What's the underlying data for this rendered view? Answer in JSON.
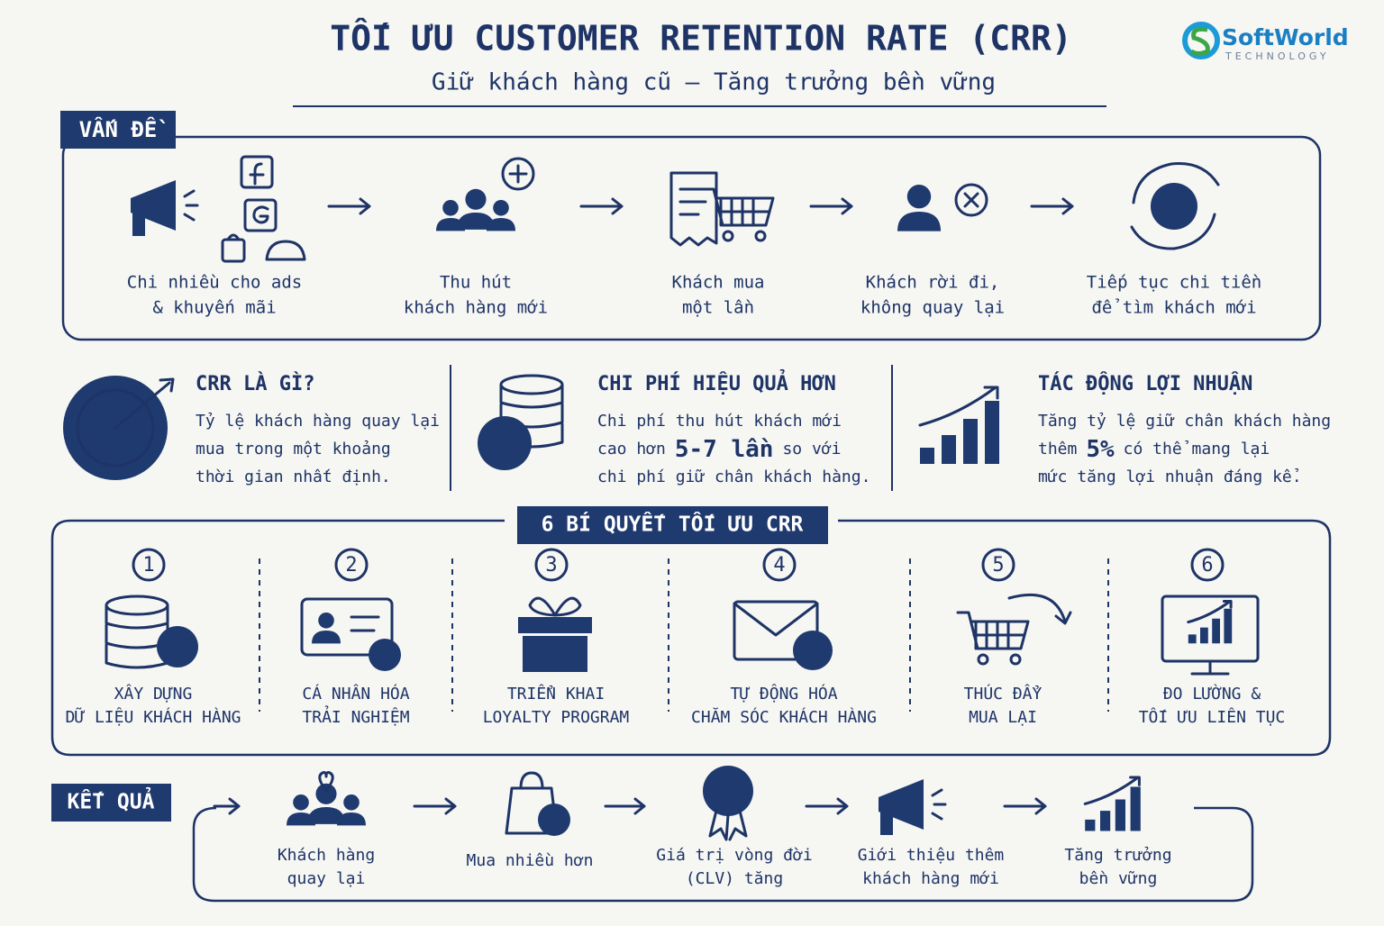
{
  "header": {
    "title": "TỐI ƯU CUSTOMER RETENTION RATE (CRR)",
    "subtitle": "Giữ khách hàng cũ – Tăng trưởng bền vững"
  },
  "logo": {
    "name": "SoftWorld",
    "tagline": "TECHNOLOGY"
  },
  "problem": {
    "label": "VẤN ĐỀ",
    "steps": [
      [
        "Chi nhiều cho ads",
        "& khuyến mãi"
      ],
      [
        "Thu hút",
        "khách hàng mới"
      ],
      [
        "Khách mua",
        "một lần"
      ],
      [
        "Khách rời đi,",
        "không quay lại"
      ],
      [
        "Tiếp tục chi tiền",
        "để tìm khách mới"
      ]
    ]
  },
  "info": [
    {
      "title": "CRR LÀ GÌ?",
      "lines": [
        [
          "Tỷ lệ khách hàng quay lại"
        ],
        [
          "mua trong một khoảng"
        ],
        [
          "thời gian nhất định."
        ]
      ]
    },
    {
      "title": "CHI PHÍ HIỆU QUẢ HƠN",
      "lines": [
        [
          "Chi phí thu hút khách mới"
        ],
        [
          "cao hơn",
          "5-7 lần",
          "so với"
        ],
        [
          "chi phí giữ chân khách hàng."
        ]
      ]
    },
    {
      "title": "TÁC ĐỘNG LỢI NHUẬN",
      "lines": [
        [
          "Tăng tỷ lệ giữ chân khách hàng"
        ],
        [
          "thêm",
          "5%",
          "có thể mang lại"
        ],
        [
          "mức tăng lợi nhuận đáng kể."
        ]
      ]
    }
  ],
  "tips": {
    "title": "6 BÍ QUYẾT TỐI ƯU CRR",
    "items": [
      {
        "number": 1,
        "lines": [
          "XÂY DỰNG",
          "DỮ LIỆU KHÁCH HÀNG"
        ]
      },
      {
        "number": 2,
        "lines": [
          "CÁ NHÂN HÓA",
          "TRẢI NGHIỆM"
        ]
      },
      {
        "number": 3,
        "lines": [
          "TRIỂN KHAI",
          "LOYALTY PROGRAM"
        ]
      },
      {
        "number": 4,
        "lines": [
          "TỰ ĐỘNG HÓA",
          "CHĂM SÓC KHÁCH HÀNG"
        ]
      },
      {
        "number": 5,
        "lines": [
          "THÚC ĐẨY",
          "MUA LẠI"
        ]
      },
      {
        "number": 6,
        "lines": [
          "ĐO LƯỜNG &",
          "TỐI ƯU LIÊN TỤC"
        ]
      }
    ]
  },
  "result": {
    "label": "KẾT QUẢ",
    "steps": [
      [
        "Khách hàng",
        "quay lại"
      ],
      [
        "Mua nhiều hơn"
      ],
      [
        "Giá trị vòng đời",
        "(CLV) tăng"
      ],
      [
        "Giới thiệu thêm",
        "khách hàng mới"
      ],
      [
        "Tăng trưởng",
        "bền vững"
      ]
    ]
  }
}
